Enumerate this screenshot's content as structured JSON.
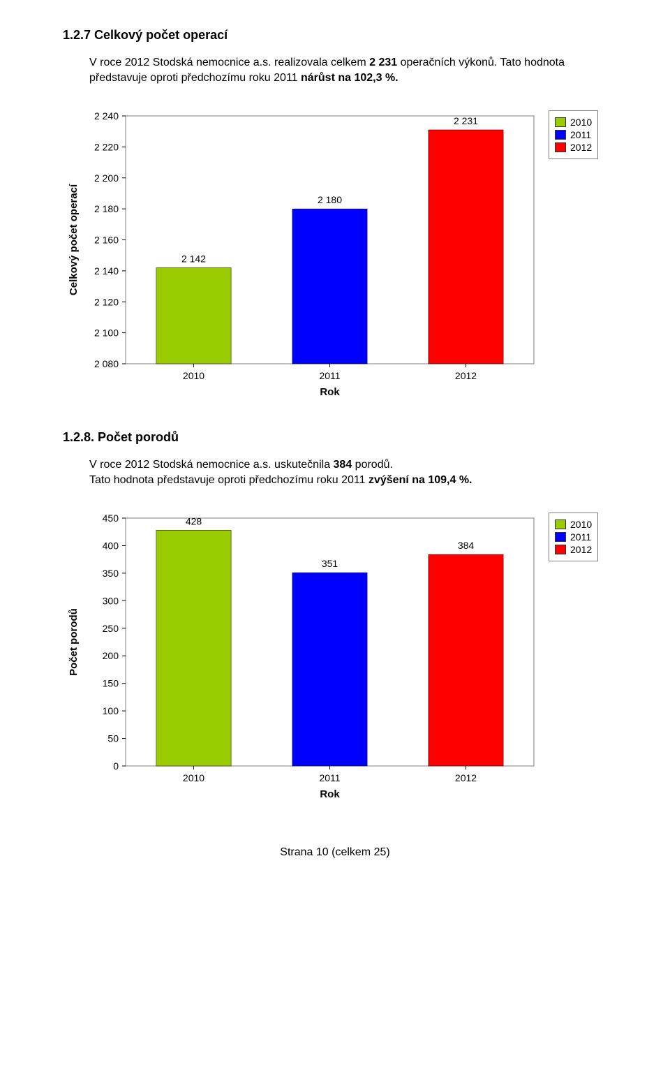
{
  "section1": {
    "heading": "1.2.7 Celkový počet operací",
    "para_segments": [
      "V roce 2012 Stodská nemocnice a.s. realizovala celkem ",
      "2 231 ",
      "operačních výkonů. Tato hodnota představuje oproti předchozímu roku 2011 ",
      "nárůst na 102,3 %."
    ]
  },
  "chart1": {
    "type": "bar",
    "y_label": "Celkový počet operací",
    "x_label": "Rok",
    "categories": [
      "2010",
      "2011",
      "2012"
    ],
    "values": [
      2142,
      2180,
      2231
    ],
    "value_labels": [
      "2 142",
      "2 180",
      "2 231"
    ],
    "ylim": [
      2080,
      2240
    ],
    "ytick_step": 20,
    "yticks": [
      "2 080",
      "2 100",
      "2 120",
      "2 140",
      "2 160",
      "2 180",
      "2 200",
      "2 220",
      "2 240"
    ],
    "bar_colors": [
      "#99cc00",
      "#0000ff",
      "#ff0000"
    ],
    "bg_color": "#ffffff",
    "border_color": "#7f7f7f",
    "text_color": "#000000",
    "axis_fontsize": 14,
    "value_fontsize": 14,
    "bar_width_ratio": 0.55
  },
  "section2": {
    "heading": "1.2.8. Počet porodů",
    "para_segments": [
      "V roce 2012 Stodská nemocnice a.s. uskutečnila ",
      "384",
      " porodů.\nTato hodnota představuje oproti předchozímu roku 2011 ",
      "zvýšení na 109,4 %."
    ]
  },
  "chart2": {
    "type": "bar",
    "y_label": "Počet porodů",
    "x_label": "Rok",
    "categories": [
      "2010",
      "2011",
      "2012"
    ],
    "values": [
      428,
      351,
      384
    ],
    "value_labels": [
      "428",
      "351",
      "384"
    ],
    "ylim": [
      0,
      450
    ],
    "ytick_step": 50,
    "yticks": [
      "0",
      "50",
      "100",
      "150",
      "200",
      "250",
      "300",
      "350",
      "400",
      "450"
    ],
    "bar_colors": [
      "#99cc00",
      "#0000ff",
      "#ff0000"
    ],
    "bg_color": "#ffffff",
    "border_color": "#7f7f7f",
    "text_color": "#000000",
    "axis_fontsize": 14,
    "value_fontsize": 14,
    "bar_width_ratio": 0.55
  },
  "legend": {
    "items": [
      {
        "label": "2010",
        "color": "#99cc00"
      },
      {
        "label": "2011",
        "color": "#0000ff"
      },
      {
        "label": "2012",
        "color": "#ff0000"
      }
    ]
  },
  "footer": "Strana 10 (celkem 25)"
}
